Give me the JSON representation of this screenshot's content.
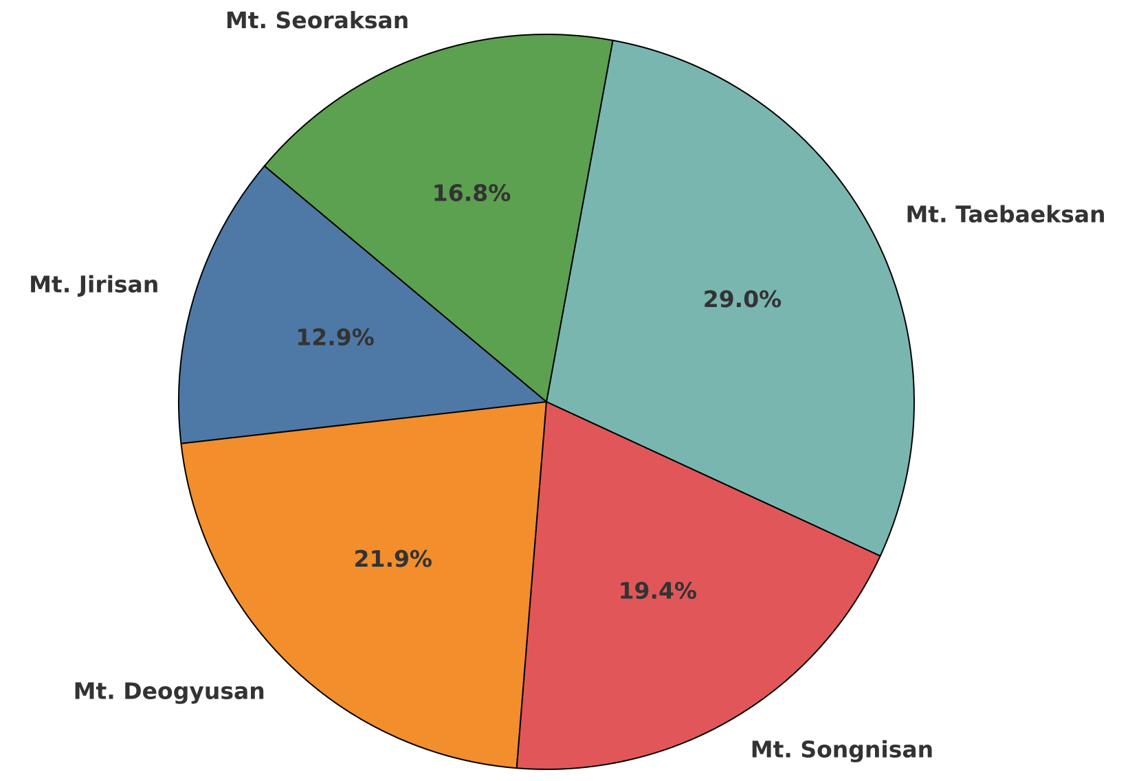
{
  "chart_data": {
    "type": "pie",
    "categories": [
      "Mt. Taebaeksan",
      "Mt. Seoraksan",
      "Mt. Jirisan",
      "Mt. Deogyusan",
      "Mt. Songnisan"
    ],
    "values": [
      29.0,
      16.8,
      12.9,
      21.9,
      19.4
    ],
    "value_labels": [
      "29.0%",
      "16.8%",
      "12.9%",
      "21.9%",
      "19.4%"
    ],
    "colors": [
      "#7ab6b0",
      "#5ba150",
      "#4e79a6",
      "#f28e2c",
      "#e15759"
    ]
  }
}
